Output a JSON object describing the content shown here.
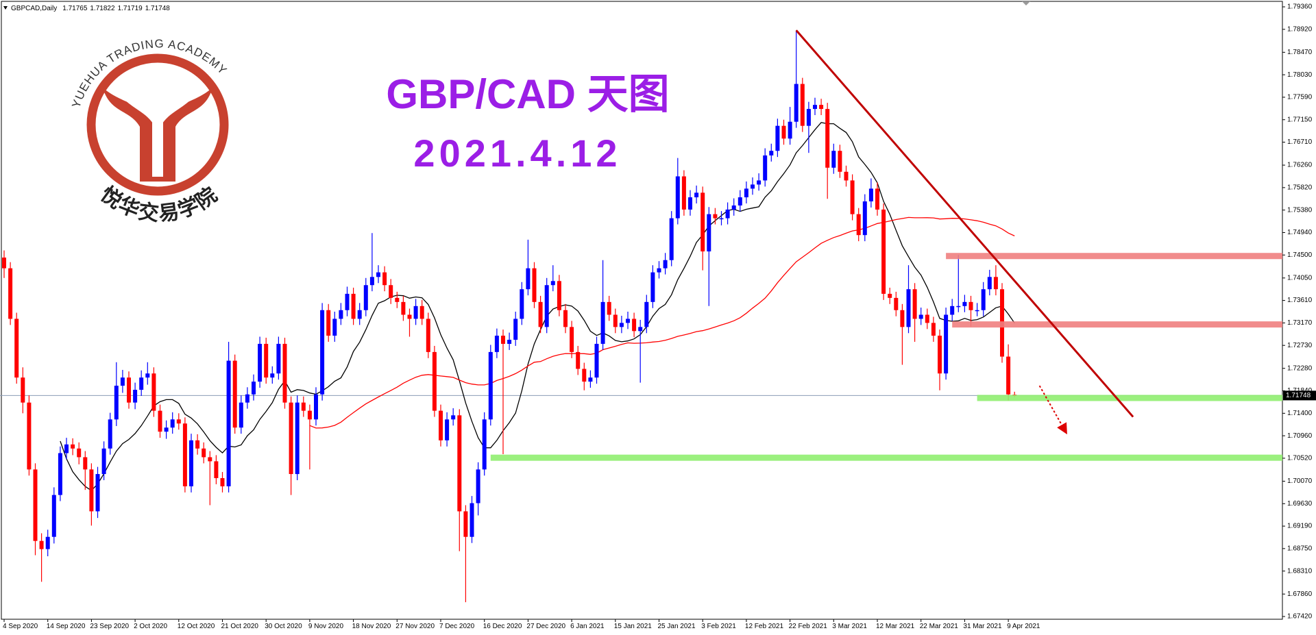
{
  "chart_data": {
    "type": "candlestick",
    "symbol": "GBPCAD,Daily",
    "title": "GBP/CAD 天图",
    "subtitle": "2021.4.12",
    "title_color": "#9b1ee6",
    "logo_text_en": "YUEHUA TRADING ACADEMY",
    "logo_text_zh": "悦华交易学院",
    "up_color": "#0000ff",
    "down_color": "#ff0000",
    "bid_line_color": "#8a9bb5",
    "grid": false,
    "ylim": [
      1.6742,
      1.7936
    ],
    "yticks": [
      {
        "value": 1.7936,
        "label": "1.79360"
      },
      {
        "value": 1.7892,
        "label": "1.78920"
      },
      {
        "value": 1.7847,
        "label": "1.78470"
      },
      {
        "value": 1.7803,
        "label": "1.78030"
      },
      {
        "value": 1.7759,
        "label": "1.77590"
      },
      {
        "value": 1.7715,
        "label": "1.77150"
      },
      {
        "value": 1.7671,
        "label": "1.76710"
      },
      {
        "value": 1.7626,
        "label": "1.76260"
      },
      {
        "value": 1.7582,
        "label": "1.75820"
      },
      {
        "value": 1.7538,
        "label": "1.75380"
      },
      {
        "value": 1.7494,
        "label": "1.74940"
      },
      {
        "value": 1.745,
        "label": "1.74500"
      },
      {
        "value": 1.7405,
        "label": "1.74050"
      },
      {
        "value": 1.7361,
        "label": "1.73610"
      },
      {
        "value": 1.7317,
        "label": "1.73170"
      },
      {
        "value": 1.7273,
        "label": "1.72730"
      },
      {
        "value": 1.7228,
        "label": "1.72280"
      },
      {
        "value": 1.7184,
        "label": "1.71840"
      },
      {
        "value": 1.714,
        "label": "1.71400"
      },
      {
        "value": 1.7096,
        "label": "1.70960"
      },
      {
        "value": 1.7052,
        "label": "1.70520"
      },
      {
        "value": 1.7007,
        "label": "1.70070"
      },
      {
        "value": 1.6963,
        "label": "1.69630"
      },
      {
        "value": 1.6919,
        "label": "1.69190"
      },
      {
        "value": 1.6875,
        "label": "1.68750"
      },
      {
        "value": 1.6831,
        "label": "1.68310"
      },
      {
        "value": 1.6786,
        "label": "1.67860"
      },
      {
        "value": 1.6742,
        "label": "1.67420"
      }
    ],
    "categories": [
      "4 Sep 2020",
      null,
      null,
      null,
      null,
      null,
      null,
      "14 Sep 2020",
      null,
      null,
      null,
      null,
      null,
      null,
      "23 Sep 2020",
      null,
      null,
      null,
      null,
      null,
      null,
      "2 Oct 2020",
      null,
      null,
      null,
      null,
      null,
      null,
      "12 Oct 2020",
      null,
      null,
      null,
      null,
      null,
      null,
      "21 Oct 2020",
      null,
      null,
      null,
      null,
      null,
      null,
      "30 Oct 2020",
      null,
      null,
      null,
      null,
      null,
      null,
      "9 Nov 2020",
      null,
      null,
      null,
      null,
      null,
      null,
      "18 Nov 2020",
      null,
      null,
      null,
      null,
      null,
      null,
      "27 Nov 2020",
      null,
      null,
      null,
      null,
      null,
      null,
      "7 Dec 2020",
      null,
      null,
      null,
      null,
      null,
      null,
      "16 Dec 2020",
      null,
      null,
      null,
      null,
      null,
      null,
      "27 Dec 2020",
      null,
      null,
      null,
      null,
      null,
      null,
      "6 Jan 2021",
      null,
      null,
      null,
      null,
      null,
      null,
      "15 Jan 2021",
      null,
      null,
      null,
      null,
      null,
      null,
      "25 Jan 2021",
      null,
      null,
      null,
      null,
      null,
      null,
      "3 Feb 2021",
      null,
      null,
      null,
      null,
      null,
      null,
      "12 Feb 2021",
      null,
      null,
      null,
      null,
      null,
      null,
      "22 Feb 2021",
      null,
      null,
      null,
      null,
      null,
      null,
      "3 Mar 2021",
      null,
      null,
      null,
      null,
      null,
      null,
      "12 Mar 2021",
      null,
      null,
      null,
      null,
      null,
      null,
      "22 Mar 2021",
      null,
      null,
      null,
      null,
      null,
      null,
      "31 Mar 2021",
      null,
      null,
      null,
      null,
      null,
      null,
      "9 Apr 2021",
      null
    ],
    "open": [
      1.7445,
      1.7424,
      1.7325,
      1.721,
      1.7161,
      1.703,
      1.689,
      1.6874,
      1.6898,
      1.698,
      1.7062,
      1.7079,
      1.7071,
      1.7054,
      1.703,
      1.6948,
      1.7021,
      1.7071,
      1.7128,
      1.7194,
      1.721,
      1.7161,
      1.7186,
      1.721,
      1.7218,
      1.7145,
      1.7104,
      1.7112,
      1.7128,
      1.712,
      1.6997,
      1.7087,
      1.7071,
      1.7054,
      1.7046,
      1.7013,
      1.6997,
      1.7243,
      1.7112,
      1.7161,
      1.7177,
      1.7202,
      1.7276,
      1.721,
      1.7218,
      1.7276,
      1.7161,
      1.7021,
      1.7161,
      1.7145,
      1.7128,
      1.7177,
      1.7342,
      1.7292,
      1.7325,
      1.7342,
      1.7374,
      1.7325,
      1.7342,
      1.7391,
      1.7407,
      1.7416,
      1.7391,
      1.7366,
      1.7358,
      1.7333,
      1.7325,
      1.735,
      1.7325,
      1.726,
      1.7145,
      1.7087,
      1.7128,
      1.7136,
      1.6948,
      1.6898,
      1.6964,
      1.703,
      1.7128,
      1.726,
      1.7292,
      1.7276,
      1.7284,
      1.7325,
      1.7383,
      1.7424,
      1.7358,
      1.7309,
      1.7391,
      1.7399,
      1.7342,
      1.7309,
      1.726,
      1.7227,
      1.7202,
      1.721,
      1.7276,
      1.7358,
      1.7333,
      1.7309,
      1.7317,
      1.7325,
      1.7301,
      1.7309,
      1.7358,
      1.7416,
      1.7424,
      1.744,
      1.7522,
      1.7604,
      1.7539,
      1.7563,
      1.7572,
      1.7457,
      1.753,
      1.7522,
      1.7522,
      1.7539,
      1.7547,
      1.7563,
      1.758,
      1.7588,
      1.7596,
      1.7645,
      1.7654,
      1.7703,
      1.7678,
      1.7711,
      1.7785,
      1.7703,
      1.7736,
      1.7744,
      1.7736,
      1.7621,
      1.7654,
      1.7613,
      1.7596,
      1.753,
      1.7489,
      1.7555,
      1.758,
      1.7539,
      1.7374,
      1.7366,
      1.7342,
      1.7309,
      1.7383,
      1.7325,
      1.7333,
      1.7317,
      1.7292,
      1.7218,
      1.7333,
      1.735,
      1.735,
      1.7358,
      1.7342,
      1.7342,
      1.7383,
      1.7407,
      1.7383,
      1.7251,
      1.71765
    ],
    "high": [
      1.7459,
      1.7436,
      1.7337,
      1.723,
      1.7175,
      1.7042,
      1.6905,
      1.6912,
      1.6995,
      1.7075,
      1.7092,
      1.7091,
      1.7083,
      1.7066,
      1.7042,
      1.7035,
      1.7085,
      1.7141,
      1.724,
      1.7225,
      1.7222,
      1.72,
      1.7224,
      1.724,
      1.723,
      1.7157,
      1.7126,
      1.7142,
      1.714,
      1.7132,
      1.71,
      1.7099,
      1.7083,
      1.7066,
      1.7058,
      1.7025,
      1.728,
      1.7255,
      1.7175,
      1.7191,
      1.7216,
      1.729,
      1.7288,
      1.7232,
      1.729,
      1.7288,
      1.7173,
      1.7175,
      1.7173,
      1.7157,
      1.7191,
      1.7356,
      1.7354,
      1.7339,
      1.7356,
      1.7388,
      1.7386,
      1.7356,
      1.7405,
      1.7493,
      1.743,
      1.7428,
      1.7403,
      1.7378,
      1.737,
      1.7345,
      1.7364,
      1.7362,
      1.7337,
      1.7272,
      1.7157,
      1.7142,
      1.715,
      1.7148,
      1.696,
      1.6978,
      1.7044,
      1.7142,
      1.7274,
      1.7306,
      1.7304,
      1.7298,
      1.7339,
      1.7397,
      1.748,
      1.7436,
      1.737,
      1.7405,
      1.743,
      1.7411,
      1.7354,
      1.7321,
      1.7272,
      1.7239,
      1.7224,
      1.729,
      1.744,
      1.737,
      1.7345,
      1.7331,
      1.7339,
      1.7337,
      1.7323,
      1.7372,
      1.743,
      1.7438,
      1.7454,
      1.7536,
      1.764,
      1.7616,
      1.7577,
      1.7586,
      1.7584,
      1.7544,
      1.7542,
      1.7536,
      1.7553,
      1.7561,
      1.7577,
      1.7594,
      1.7602,
      1.761,
      1.7659,
      1.7668,
      1.7717,
      1.7715,
      1.774,
      1.789,
      1.7797,
      1.775,
      1.7758,
      1.7756,
      1.7748,
      1.7668,
      1.7666,
      1.7625,
      1.7608,
      1.7542,
      1.7569,
      1.76,
      1.7592,
      1.7551,
      1.7386,
      1.7378,
      1.7354,
      1.743,
      1.7395,
      1.7347,
      1.7345,
      1.7329,
      1.7304,
      1.7347,
      1.7364,
      1.745,
      1.7372,
      1.737,
      1.7356,
      1.7397,
      1.7421,
      1.743,
      1.7395,
      1.7275,
      1.71822
    ],
    "low": [
      1.7405,
      1.7313,
      1.7198,
      1.714,
      1.7018,
      1.6862,
      1.681,
      1.686,
      1.6885,
      1.6968,
      1.705,
      1.7058,
      1.704,
      1.699,
      1.692,
      1.6935,
      1.7009,
      1.7059,
      1.7115,
      1.718,
      1.7149,
      1.7148,
      1.7174,
      1.7196,
      1.7133,
      1.7092,
      1.709,
      1.71,
      1.7108,
      1.6985,
      1.6985,
      1.7059,
      1.7042,
      1.696,
      1.7001,
      1.6985,
      1.6985,
      1.71,
      1.71,
      1.7149,
      1.7165,
      1.719,
      1.7198,
      1.7198,
      1.7206,
      1.7149,
      1.698,
      1.7009,
      1.7133,
      1.703,
      1.7116,
      1.7165,
      1.728,
      1.728,
      1.7313,
      1.733,
      1.7313,
      1.7313,
      1.733,
      1.7379,
      1.7395,
      1.7379,
      1.7354,
      1.7346,
      1.7321,
      1.729,
      1.7313,
      1.7313,
      1.7248,
      1.7133,
      1.7075,
      1.7075,
      1.7116,
      1.687,
      1.677,
      1.6886,
      1.694,
      1.7018,
      1.7116,
      1.7248,
      1.706,
      1.7264,
      1.7272,
      1.7313,
      1.7371,
      1.7346,
      1.7297,
      1.7297,
      1.7379,
      1.733,
      1.7297,
      1.7248,
      1.7215,
      1.7185,
      1.719,
      1.7198,
      1.7264,
      1.7321,
      1.7297,
      1.7297,
      1.7305,
      1.7289,
      1.72,
      1.7297,
      1.7346,
      1.7404,
      1.7412,
      1.7428,
      1.751,
      1.7527,
      1.7527,
      1.7551,
      1.742,
      1.735,
      1.751,
      1.7508,
      1.751,
      1.7527,
      1.7535,
      1.7551,
      1.7568,
      1.7576,
      1.7584,
      1.7633,
      1.7642,
      1.7666,
      1.7666,
      1.7699,
      1.7691,
      1.765,
      1.7724,
      1.7724,
      1.756,
      1.7609,
      1.7601,
      1.7584,
      1.7518,
      1.7477,
      1.7477,
      1.7543,
      1.7527,
      1.7362,
      1.7354,
      1.733,
      1.7235,
      1.7297,
      1.728,
      1.7313,
      1.7305,
      1.728,
      1.7185,
      1.7206,
      1.7321,
      1.7338,
      1.7338,
      1.731,
      1.733,
      1.733,
      1.7371,
      1.7371,
      1.7239,
      1.7165,
      1.71719
    ],
    "close": [
      1.7424,
      1.7325,
      1.721,
      1.7161,
      1.703,
      1.689,
      1.6874,
      1.6898,
      1.698,
      1.7062,
      1.7079,
      1.7071,
      1.7054,
      1.703,
      1.6948,
      1.7021,
      1.7071,
      1.7128,
      1.7194,
      1.721,
      1.7161,
      1.7186,
      1.721,
      1.7218,
      1.7145,
      1.7104,
      1.7112,
      1.7128,
      1.712,
      1.6997,
      1.7087,
      1.7071,
      1.7054,
      1.7046,
      1.7013,
      1.6997,
      1.7243,
      1.7112,
      1.7161,
      1.7177,
      1.7202,
      1.7276,
      1.721,
      1.7218,
      1.7276,
      1.7161,
      1.7021,
      1.7161,
      1.7145,
      1.7128,
      1.7177,
      1.7342,
      1.7292,
      1.7325,
      1.7342,
      1.7374,
      1.7325,
      1.7342,
      1.7391,
      1.7407,
      1.7416,
      1.7391,
      1.7366,
      1.7358,
      1.7333,
      1.7325,
      1.735,
      1.7325,
      1.726,
      1.7145,
      1.7087,
      1.7128,
      1.7136,
      1.6948,
      1.6898,
      1.6964,
      1.703,
      1.7128,
      1.726,
      1.7292,
      1.7276,
      1.7284,
      1.7325,
      1.7383,
      1.7424,
      1.7358,
      1.7309,
      1.7391,
      1.7399,
      1.7342,
      1.7309,
      1.726,
      1.7227,
      1.7202,
      1.721,
      1.7276,
      1.7358,
      1.7333,
      1.7309,
      1.7317,
      1.7325,
      1.7301,
      1.7309,
      1.7358,
      1.7416,
      1.7424,
      1.744,
      1.7522,
      1.7604,
      1.7539,
      1.7563,
      1.7572,
      1.7457,
      1.753,
      1.7522,
      1.7522,
      1.7539,
      1.7547,
      1.7563,
      1.758,
      1.7588,
      1.7596,
      1.7645,
      1.7654,
      1.7703,
      1.7678,
      1.7711,
      1.7785,
      1.7703,
      1.7736,
      1.7744,
      1.7736,
      1.7621,
      1.7654,
      1.7613,
      1.7596,
      1.753,
      1.7489,
      1.7555,
      1.758,
      1.7539,
      1.7374,
      1.7366,
      1.7342,
      1.7309,
      1.7383,
      1.7325,
      1.7333,
      1.7317,
      1.7292,
      1.7218,
      1.7333,
      1.735,
      1.735,
      1.7358,
      1.7342,
      1.7342,
      1.7383,
      1.7407,
      1.7383,
      1.7251,
      1.7177,
      1.71748
    ],
    "moving_averages": [
      {
        "period": 10,
        "color": "#000000"
      },
      {
        "period": 50,
        "color": "#ff0000"
      }
    ],
    "levels": [
      {
        "value": 1.7448,
        "from": 151,
        "color": "#f08080"
      },
      {
        "value": 1.7314,
        "from": 152,
        "color": "#f08080"
      },
      {
        "value": 1.717,
        "from": 156,
        "color": "#90ee70"
      },
      {
        "value": 1.7053,
        "from": 78,
        "color": "#90ee70"
      }
    ],
    "trendlines": [
      {
        "x": [
          127,
          181
        ],
        "y": [
          1.789,
          1.7133
        ],
        "color": "#c00000",
        "dashed": false
      },
      {
        "x": [
          166,
          170
        ],
        "y": [
          1.7194,
          1.7108
        ],
        "color": "#dd0000",
        "dashed": true
      }
    ]
  }
}
